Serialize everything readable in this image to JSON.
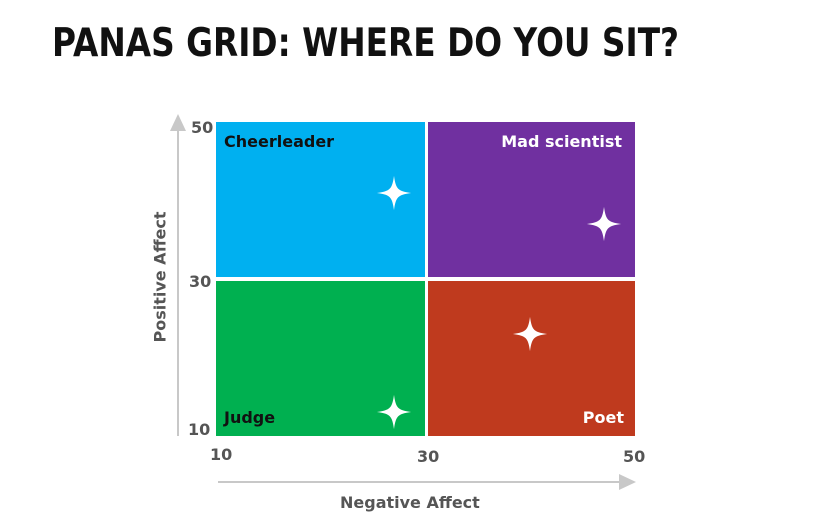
{
  "title": "PANAS GRID: WHERE DO YOU SIT?",
  "axes": {
    "x_title": "Negative Affect",
    "y_title": "Positive Affect",
    "x_ticks": [
      "10",
      "30",
      "50"
    ],
    "y_ticks": [
      "50",
      "30",
      "10"
    ]
  },
  "quadrants": {
    "top_left": {
      "label": "Cheerleader",
      "color": "#00B0F0"
    },
    "top_right": {
      "label": "Mad scientist",
      "color": "#7030A0"
    },
    "bottom_left": {
      "label": "Judge",
      "color": "#00B050"
    },
    "bottom_right": {
      "label": "Poet",
      "color": "#BF3A1E"
    }
  },
  "markers": [
    {
      "name": "star-cheerleader",
      "negative_affect": 27,
      "positive_affect": 41
    },
    {
      "name": "star-mad-scientist",
      "negative_affect": 47,
      "positive_affect": 37
    },
    {
      "name": "star-poet",
      "negative_affect": 40,
      "positive_affect": 23
    },
    {
      "name": "star-judge",
      "negative_affect": 27,
      "positive_affect": 13
    }
  ],
  "arrow_color": "#C8C8C8"
}
